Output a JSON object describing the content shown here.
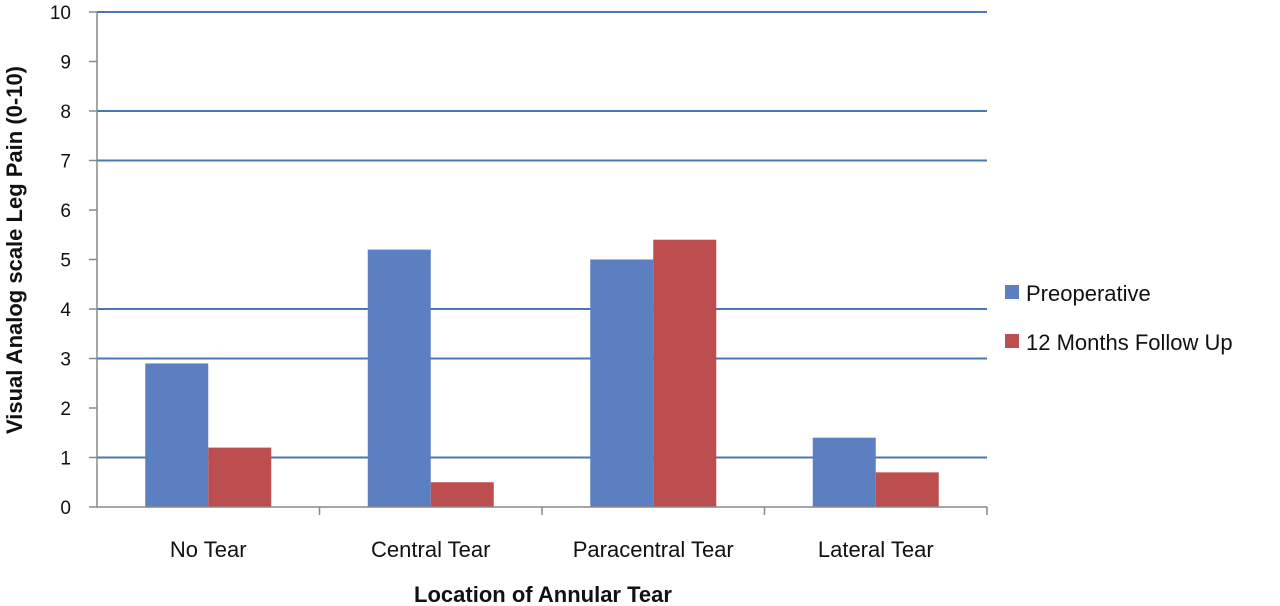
{
  "chart_data": {
    "type": "bar",
    "title": "",
    "xlabel": "Location of Annular Tear",
    "ylabel": "Visual Analog scale Leg Pain (0-10)",
    "ylim": [
      0,
      10
    ],
    "yticks": [
      "0",
      "1",
      "2",
      "3",
      "4",
      "5",
      "6",
      "7",
      "8",
      "9",
      "10"
    ],
    "gridlines_at": [
      1,
      3,
      4,
      7,
      8,
      10
    ],
    "grid": true,
    "legend_position": "right",
    "categories": [
      "No Tear",
      "Central Tear",
      "Paracentral Tear",
      "Lateral Tear"
    ],
    "series": [
      {
        "name": "Preoperative",
        "color": "#5b7fc1",
        "values": [
          2.9,
          5.2,
          5.0,
          1.4
        ]
      },
      {
        "name": "12 Months Follow Up",
        "color": "#bd4e50",
        "values": [
          1.2,
          0.5,
          5.4,
          0.7
        ]
      }
    ]
  }
}
